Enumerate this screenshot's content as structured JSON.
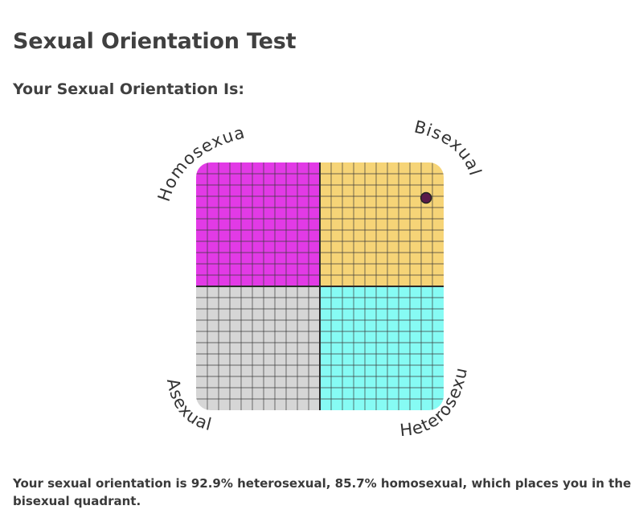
{
  "header": {
    "title": "Sexual Orientation Test",
    "subtitle": "Your Sexual Orientation Is:"
  },
  "chart_data": {
    "type": "scatter",
    "quadrants": [
      {
        "label": "Homosexual",
        "position": "top-left",
        "color": "#e23ae6"
      },
      {
        "label": "Bisexual",
        "position": "top-right",
        "color": "#f6d477"
      },
      {
        "label": "Asexual",
        "position": "bottom-left",
        "color": "#d6d6d6"
      },
      {
        "label": "Heterosexual",
        "position": "bottom-right",
        "color": "#86fbf4"
      }
    ],
    "point": {
      "heterosexual": 92.9,
      "homosexual": 85.7,
      "color": "#5a1a4a"
    },
    "x_range": [
      0,
      100
    ],
    "y_range": [
      0,
      100
    ],
    "grid": true
  },
  "result": {
    "text": "Your sexual orientation is 92.9% heterosexual, 85.7% homosexual, which places you in the bisexual quadrant."
  }
}
